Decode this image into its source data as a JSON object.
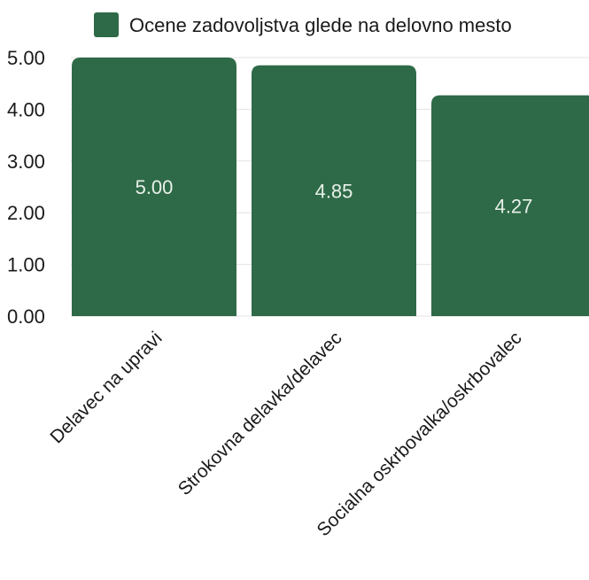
{
  "chart_data": {
    "type": "bar",
    "categories": [
      "Delavec na upravi",
      "Strokovna delavka/delavec",
      "Socialna oskrbovalka/oskrbovalec"
    ],
    "series": [
      {
        "name": "Ocene zadovoljstva glede na delovno mesto",
        "values": [
          5.0,
          4.85,
          4.27
        ]
      }
    ],
    "data_labels": [
      "5.00",
      "4.85",
      "4.27"
    ],
    "y_ticks": [
      "0.00",
      "1.00",
      "2.00",
      "3.00",
      "4.00",
      "5.00"
    ],
    "ylim": [
      0,
      5
    ],
    "grid": true,
    "legend_position": "top",
    "title": "",
    "xlabel": "",
    "ylabel": "",
    "colors": {
      "bar": "#2e6a47",
      "data_label": "#e8f0ea",
      "grid": "#e3e3e3",
      "text": "#1a1a1a"
    }
  }
}
